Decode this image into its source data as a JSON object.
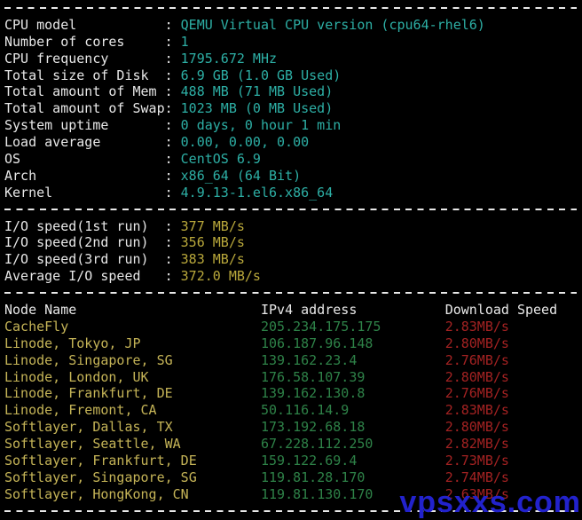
{
  "colors": {
    "background": "#000000",
    "text_white": "#e8e8e8",
    "value_cyan": "#2dafa5",
    "io_yellow": "#b9a83b",
    "node_yellow": "#c5b457",
    "ip_green": "#2e8248",
    "speed_red": "#a32222",
    "watermark_blue": "#2222cc"
  },
  "colon": ":",
  "system_info": {
    "rows": [
      {
        "label": "CPU model",
        "value": "QEMU Virtual CPU version (cpu64-rhel6)"
      },
      {
        "label": "Number of cores",
        "value": "1"
      },
      {
        "label": "CPU frequency",
        "value": "1795.672 MHz"
      },
      {
        "label": "Total size of Disk",
        "value": "6.9 GB (1.0 GB Used)"
      },
      {
        "label": "Total amount of Mem",
        "value": "488 MB (71 MB Used)"
      },
      {
        "label": "Total amount of Swap",
        "value": "1023 MB (0 MB Used)"
      },
      {
        "label": "System uptime",
        "value": "0 days, 0 hour 1 min"
      },
      {
        "label": "Load average",
        "value": "0.00, 0.00, 0.00"
      },
      {
        "label": "OS",
        "value": "CentOS 6.9"
      },
      {
        "label": "Arch",
        "value": "x86_64 (64 Bit)"
      },
      {
        "label": "Kernel",
        "value": "4.9.13-1.el6.x86_64"
      }
    ]
  },
  "io_speed": {
    "rows": [
      {
        "label": "I/O speed(1st run)",
        "value": "377 MB/s"
      },
      {
        "label": "I/O speed(2nd run)",
        "value": "356 MB/s"
      },
      {
        "label": "I/O speed(3rd run)",
        "value": "383 MB/s"
      },
      {
        "label": "Average I/O speed",
        "value": "372.0 MB/s"
      }
    ]
  },
  "speed_test": {
    "headers": {
      "node": "Node Name",
      "ip": "IPv4 address",
      "speed": "Download Speed"
    },
    "rows": [
      {
        "node": "CacheFly",
        "ip": "205.234.175.175",
        "speed": "2.83MB/s"
      },
      {
        "node": "Linode, Tokyo, JP",
        "ip": "106.187.96.148",
        "speed": "2.80MB/s"
      },
      {
        "node": "Linode, Singapore, SG",
        "ip": "139.162.23.4",
        "speed": "2.76MB/s"
      },
      {
        "node": "Linode, London, UK",
        "ip": "176.58.107.39",
        "speed": "2.80MB/s"
      },
      {
        "node": "Linode, Frankfurt, DE",
        "ip": "139.162.130.8",
        "speed": "2.76MB/s"
      },
      {
        "node": "Linode, Fremont, CA",
        "ip": "50.116.14.9",
        "speed": "2.83MB/s"
      },
      {
        "node": "Softlayer, Dallas, TX",
        "ip": "173.192.68.18",
        "speed": "2.80MB/s"
      },
      {
        "node": "Softlayer, Seattle, WA",
        "ip": "67.228.112.250",
        "speed": "2.82MB/s"
      },
      {
        "node": "Softlayer, Frankfurt, DE",
        "ip": "159.122.69.4",
        "speed": "2.73MB/s"
      },
      {
        "node": "Softlayer, Singapore, SG",
        "ip": "119.81.28.170",
        "speed": "2.74MB/s"
      },
      {
        "node": "Softlayer, HongKong, CN",
        "ip": "119.81.130.170",
        "speed": "2.63MB/s"
      }
    ]
  },
  "watermark": {
    "text": "vpsxxs.com"
  }
}
